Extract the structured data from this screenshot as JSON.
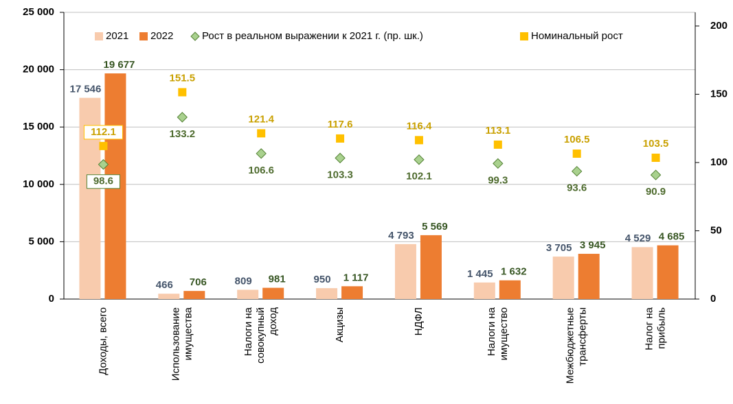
{
  "chart_data": {
    "type": "bar",
    "categories": [
      "Доходы, всего",
      "Использование\nимущества",
      "Налоги на\nсовокупный\nдоход",
      "Акцизы",
      "НДФЛ",
      "Налоги на\nимущество",
      "Межбюджетные\nтрансферты",
      "Налог на\nприбыль"
    ],
    "series": [
      {
        "name": "2021",
        "color": "#f8cbad",
        "values": [
          17546,
          466,
          809,
          950,
          4793,
          1445,
          3705,
          4529
        ],
        "value_labels": [
          "17 546",
          "466",
          "809",
          "950",
          "4 793",
          "1 445",
          "3 705",
          "4 529"
        ]
      },
      {
        "name": "2022",
        "color": "#ed7d31",
        "values": [
          19677,
          706,
          981,
          1117,
          5569,
          1632,
          3945,
          4685
        ],
        "value_labels": [
          "19 677",
          "706",
          "981",
          "1 117",
          "5 569",
          "1 632",
          "3 945",
          "4 685"
        ]
      },
      {
        "name": "Рост в реальном выражении к 2021 г. (пр. шк.)",
        "color": "#a9d18e",
        "type": "diamond",
        "axis": "y2",
        "values": [
          98.6,
          133.2,
          106.6,
          103.3,
          102.1,
          99.3,
          93.6,
          90.9
        ]
      },
      {
        "name": "Номинальный рост",
        "color": "#ffc000",
        "type": "square",
        "axis": "y2",
        "values": [
          112.1,
          151.5,
          121.4,
          117.6,
          116.4,
          113.1,
          106.5,
          103.5
        ]
      }
    ],
    "ylim": [
      0,
      25000
    ],
    "yticks": [
      0,
      {
        "value": 5000,
        "label": "5 000"
      },
      {
        "value": 10000,
        "label": "10 000"
      },
      {
        "value": 15000,
        "label": "15 000"
      },
      {
        "value": 20000,
        "label": "20 000"
      },
      {
        "value": 25000,
        "label": "25 000"
      }
    ],
    "y2lim": [
      0,
      210
    ],
    "y2ticks": [
      0,
      50,
      100,
      150,
      200
    ],
    "grid": true,
    "legend": "top"
  }
}
